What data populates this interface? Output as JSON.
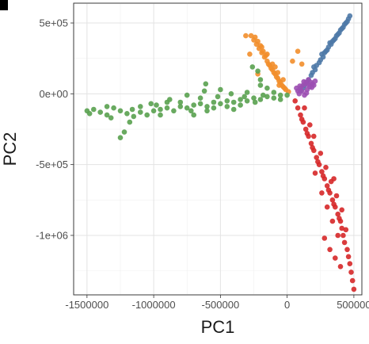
{
  "chart_data": {
    "type": "scatter",
    "title": "",
    "xlabel": "PC1",
    "ylabel": "PC2",
    "xlim": [
      -1600000,
      560000
    ],
    "ylim": [
      -1420000,
      640000
    ],
    "x_ticks": [
      -1500000,
      -1000000,
      -500000,
      0,
      500000
    ],
    "x_tick_labels": [
      "-1500000",
      "-1000000",
      "-500000",
      "0",
      "500000"
    ],
    "y_ticks": [
      -1000000,
      -500000,
      0,
      500000
    ],
    "y_tick_labels": [
      "-1e+06",
      "-5e+05",
      "0e+00",
      "5e+05"
    ],
    "grid": true,
    "legend": "none",
    "series": [
      {
        "color": "#4e79a7",
        "points": [
          [
            100000,
            20000
          ],
          [
            130000,
            60000
          ],
          [
            160000,
            100000
          ],
          [
            190000,
            150000
          ],
          [
            220000,
            200000
          ],
          [
            250000,
            240000
          ],
          [
            280000,
            290000
          ],
          [
            310000,
            330000
          ],
          [
            340000,
            370000
          ],
          [
            370000,
            410000
          ],
          [
            400000,
            450000
          ],
          [
            430000,
            490000
          ],
          [
            460000,
            530000
          ],
          [
            470000,
            550000
          ],
          [
            120000,
            40000
          ],
          [
            150000,
            80000
          ],
          [
            180000,
            130000
          ],
          [
            210000,
            170000
          ],
          [
            240000,
            220000
          ],
          [
            270000,
            260000
          ],
          [
            300000,
            310000
          ],
          [
            330000,
            350000
          ],
          [
            360000,
            390000
          ],
          [
            390000,
            430000
          ],
          [
            420000,
            470000
          ],
          [
            450000,
            510000
          ],
          [
            200000,
            190000
          ],
          [
            260000,
            280000
          ],
          [
            320000,
            360000
          ],
          [
            380000,
            420000
          ],
          [
            440000,
            500000
          ],
          [
            290000,
            300000
          ],
          [
            350000,
            380000
          ],
          [
            410000,
            460000
          ]
        ]
      },
      {
        "color": "#f28e2b",
        "points": [
          [
            -270000,
            410000
          ],
          [
            -250000,
            380000
          ],
          [
            -230000,
            350000
          ],
          [
            -210000,
            320000
          ],
          [
            -190000,
            290000
          ],
          [
            -170000,
            260000
          ],
          [
            -150000,
            230000
          ],
          [
            -130000,
            200000
          ],
          [
            -110000,
            170000
          ],
          [
            -90000,
            140000
          ],
          [
            -70000,
            110000
          ],
          [
            -50000,
            80000
          ],
          [
            -30000,
            50000
          ],
          [
            -10000,
            30000
          ],
          [
            10000,
            15000
          ],
          [
            -240000,
            400000
          ],
          [
            -220000,
            370000
          ],
          [
            -200000,
            340000
          ],
          [
            -180000,
            300000
          ],
          [
            -160000,
            270000
          ],
          [
            -140000,
            210000
          ],
          [
            -120000,
            180000
          ],
          [
            -100000,
            150000
          ],
          [
            -80000,
            120000
          ],
          [
            -60000,
            90000
          ],
          [
            -40000,
            60000
          ],
          [
            -20000,
            40000
          ],
          [
            -190000,
            330000
          ],
          [
            -150000,
            280000
          ],
          [
            -110000,
            210000
          ],
          [
            -70000,
            150000
          ],
          [
            -30000,
            100000
          ],
          [
            -310000,
            410000
          ],
          [
            -280000,
            280000
          ],
          [
            -220000,
            140000
          ],
          [
            40000,
            230000
          ],
          [
            80000,
            300000
          ],
          [
            110000,
            210000
          ],
          [
            -60000,
            60000
          ],
          [
            -90000,
            190000
          ]
        ]
      },
      {
        "color": "#59a14f",
        "points": [
          [
            -1500000,
            -120000
          ],
          [
            -1450000,
            -110000
          ],
          [
            -1400000,
            -130000
          ],
          [
            -1350000,
            -150000
          ],
          [
            -1300000,
            -100000
          ],
          [
            -1250000,
            -120000
          ],
          [
            -1200000,
            -140000
          ],
          [
            -1150000,
            -160000
          ],
          [
            -1100000,
            -130000
          ],
          [
            -1050000,
            -150000
          ],
          [
            -1000000,
            -120000
          ],
          [
            -950000,
            -110000
          ],
          [
            -900000,
            -100000
          ],
          [
            -850000,
            -120000
          ],
          [
            -800000,
            -90000
          ],
          [
            -750000,
            -100000
          ],
          [
            -700000,
            -80000
          ],
          [
            -650000,
            -70000
          ],
          [
            -600000,
            -90000
          ],
          [
            -550000,
            -60000
          ],
          [
            -500000,
            -70000
          ],
          [
            -450000,
            -50000
          ],
          [
            -400000,
            -60000
          ],
          [
            -350000,
            -40000
          ],
          [
            -300000,
            -50000
          ],
          [
            -250000,
            -30000
          ],
          [
            -200000,
            -40000
          ],
          [
            -150000,
            -20000
          ],
          [
            -100000,
            -30000
          ],
          [
            -50000,
            -10000
          ],
          [
            0,
            -10000
          ],
          [
            -1250000,
            -310000
          ],
          [
            -1220000,
            -270000
          ],
          [
            -1180000,
            -200000
          ],
          [
            -900000,
            -60000
          ],
          [
            -700000,
            -150000
          ],
          [
            -600000,
            -120000
          ],
          [
            -500000,
            30000
          ],
          [
            -400000,
            -110000
          ],
          [
            -300000,
            10000
          ],
          [
            -200000,
            60000
          ],
          [
            -150000,
            40000
          ],
          [
            -750000,
            -10000
          ],
          [
            -620000,
            20000
          ],
          [
            -880000,
            -40000
          ],
          [
            -1020000,
            -70000
          ],
          [
            -1350000,
            -90000
          ],
          [
            -1480000,
            -140000
          ],
          [
            -550000,
            -100000
          ],
          [
            -450000,
            -90000
          ],
          [
            -350000,
            -80000
          ],
          [
            -650000,
            -30000
          ],
          [
            -800000,
            -60000
          ],
          [
            -1100000,
            -90000
          ],
          [
            -950000,
            -150000
          ],
          [
            -260000,
            190000
          ],
          [
            -220000,
            160000
          ],
          [
            -200000,
            100000
          ],
          [
            -100000,
            10000
          ],
          [
            -50000,
            -40000
          ],
          [
            -610000,
            70000
          ],
          [
            -180000,
            -10000
          ],
          [
            -1320000,
            -170000
          ],
          [
            -1160000,
            -110000
          ],
          [
            -980000,
            -80000
          ],
          [
            -720000,
            -120000
          ],
          [
            -520000,
            -20000
          ],
          [
            -420000,
            0
          ],
          [
            -320000,
            -20000
          ],
          [
            -240000,
            -60000
          ]
        ]
      },
      {
        "color": "#d62728",
        "points": [
          [
            60000,
            -50000
          ],
          [
            80000,
            -100000
          ],
          [
            100000,
            -150000
          ],
          [
            120000,
            -200000
          ],
          [
            140000,
            -250000
          ],
          [
            160000,
            -300000
          ],
          [
            180000,
            -350000
          ],
          [
            200000,
            -400000
          ],
          [
            220000,
            -450000
          ],
          [
            240000,
            -500000
          ],
          [
            260000,
            -550000
          ],
          [
            280000,
            -600000
          ],
          [
            300000,
            -650000
          ],
          [
            320000,
            -700000
          ],
          [
            340000,
            -750000
          ],
          [
            360000,
            -800000
          ],
          [
            380000,
            -850000
          ],
          [
            400000,
            -900000
          ],
          [
            410000,
            -950000
          ],
          [
            420000,
            -1000000
          ],
          [
            430000,
            -1050000
          ],
          [
            450000,
            -1100000
          ],
          [
            460000,
            -1150000
          ],
          [
            470000,
            -1200000
          ],
          [
            480000,
            -1260000
          ],
          [
            490000,
            -1320000
          ],
          [
            500000,
            -1380000
          ],
          [
            110000,
            -180000
          ],
          [
            150000,
            -280000
          ],
          [
            190000,
            -380000
          ],
          [
            230000,
            -480000
          ],
          [
            270000,
            -580000
          ],
          [
            310000,
            -680000
          ],
          [
            350000,
            -780000
          ],
          [
            390000,
            -880000
          ],
          [
            250000,
            -420000
          ],
          [
            290000,
            -520000
          ],
          [
            330000,
            -620000
          ],
          [
            370000,
            -720000
          ],
          [
            410000,
            -820000
          ],
          [
            210000,
            -560000
          ],
          [
            260000,
            -700000
          ],
          [
            300000,
            -800000
          ],
          [
            340000,
            -900000
          ],
          [
            380000,
            -1000000
          ],
          [
            280000,
            -1020000
          ],
          [
            320000,
            -1100000
          ],
          [
            360000,
            -1160000
          ],
          [
            400000,
            -1220000
          ],
          [
            440000,
            -960000
          ],
          [
            350000,
            -600000
          ],
          [
            200000,
            -300000
          ],
          [
            130000,
            -100000
          ],
          [
            170000,
            -220000
          ]
        ]
      },
      {
        "color": "#9c4fb3",
        "points": [
          [
            80000,
            20000
          ],
          [
            100000,
            40000
          ],
          [
            120000,
            60000
          ],
          [
            140000,
            80000
          ],
          [
            160000,
            100000
          ],
          [
            180000,
            80000
          ],
          [
            200000,
            60000
          ],
          [
            90000,
            0
          ],
          [
            110000,
            20000
          ],
          [
            130000,
            -10000
          ],
          [
            150000,
            30000
          ],
          [
            170000,
            50000
          ],
          [
            190000,
            70000
          ],
          [
            210000,
            90000
          ],
          [
            70000,
            40000
          ],
          [
            95000,
            55000
          ],
          [
            125000,
            85000
          ],
          [
            155000,
            65000
          ],
          [
            185000,
            45000
          ],
          [
            145000,
            5000
          ]
        ]
      }
    ]
  }
}
